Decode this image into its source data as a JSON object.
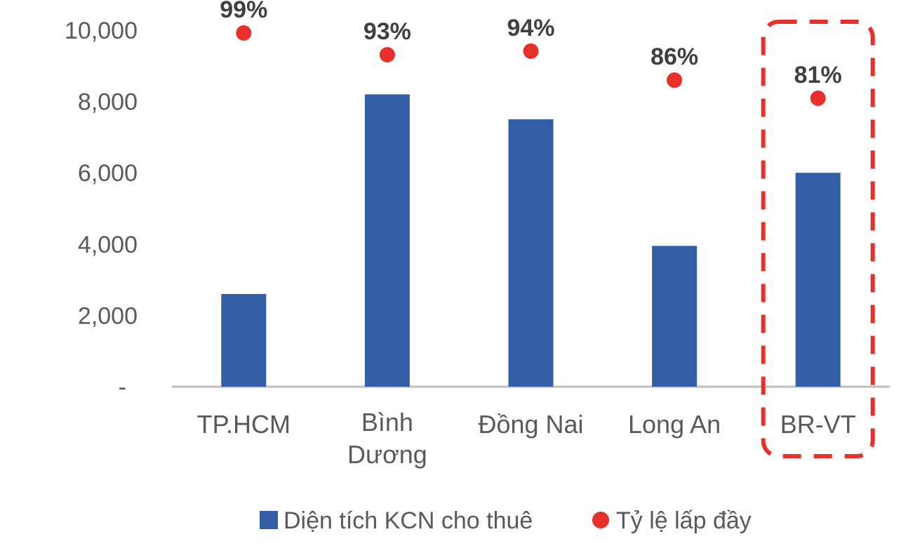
{
  "chart_data": {
    "type": "bar",
    "categories": [
      [
        "TP.HCM"
      ],
      [
        "Bình",
        "Dương"
      ],
      [
        "Đồng Nai"
      ],
      [
        "Long An"
      ],
      [
        "BR-VT"
      ]
    ],
    "series": [
      {
        "name": "Diện tích KCN cho thuê",
        "type": "bar",
        "color": "#335EA6",
        "values": [
          2600,
          8200,
          7500,
          3950,
          6000
        ]
      },
      {
        "name": "Tỷ lệ lấp đầy",
        "type": "scatter",
        "color": "#E8302A",
        "values": [
          99,
          93,
          94,
          86,
          81
        ],
        "labels": [
          "99%",
          "93%",
          "94%",
          "86%",
          "81%"
        ]
      }
    ],
    "ylim": [
      0,
      10000
    ],
    "yticks": [
      "-",
      "2,000",
      "4,000",
      "6,000",
      "8,000",
      "10,000"
    ],
    "ytick_values": [
      0,
      2000,
      4000,
      6000,
      8000,
      10000
    ],
    "grid": false,
    "legend": "bottom",
    "highlight": {
      "category_index": 4,
      "style": "dashed-red-box",
      "color": "#E8302A"
    }
  }
}
